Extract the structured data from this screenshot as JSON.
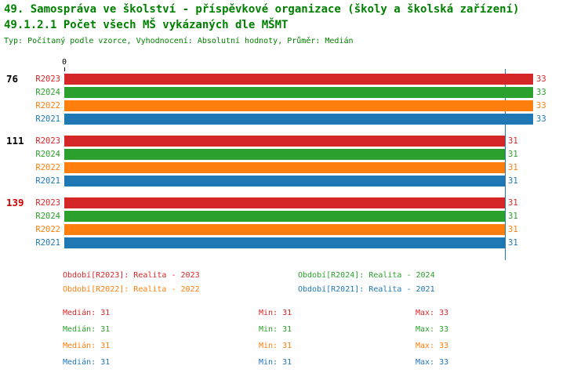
{
  "header": {
    "title": "49. Samospráva ve školství - příspěvkové organizace (školy a školská zařízení)",
    "meta": "Typ: Počítaný podle vzorce, Vyhodnocení: Absolutní hodnoty, Průměr: Medián",
    "title_color": "#008000"
  },
  "colors": {
    "R2023": "#d62728",
    "R2024": "#2ca02c",
    "R2022": "#ff7f0e",
    "R2021": "#1f77b4",
    "group_label": "#000000",
    "group_label_highlight": "#cc0000",
    "median_line": "#1f77b4",
    "axis_text": "#000000"
  },
  "chart_data": {
    "type": "bar",
    "orientation": "horizontal",
    "title": "49.1.2.1 Počet všech MŠ vykázaných dle MŠMT",
    "x_axis": {
      "origin_label": "0",
      "min": 0,
      "max_value_shown": 33,
      "median_line_value": 31,
      "grid": false
    },
    "series_order": [
      "R2023",
      "R2024",
      "R2022",
      "R2021"
    ],
    "groups": [
      {
        "label": "76",
        "highlight": false,
        "values": {
          "R2023": 33,
          "R2024": 33,
          "R2022": 33,
          "R2021": 33
        }
      },
      {
        "label": "111",
        "highlight": false,
        "values": {
          "R2023": 31,
          "R2024": 31,
          "R2022": 31,
          "R2021": 31
        }
      },
      {
        "label": "139",
        "highlight": true,
        "values": {
          "R2023": 31,
          "R2024": 31,
          "R2022": 31,
          "R2021": 31
        }
      }
    ],
    "legend": [
      {
        "series": "R2023",
        "label": "Období[R2023]: Realita - 2023"
      },
      {
        "series": "R2024",
        "label": "Období[R2024]: Realita - 2024"
      },
      {
        "series": "R2022",
        "label": "Období[R2022]: Realita - 2022"
      },
      {
        "series": "R2021",
        "label": "Období[R2021]: Realita - 2021"
      }
    ],
    "stats_labels": {
      "median": "Medián:",
      "min": "Min:",
      "max": "Max:"
    },
    "stats": [
      {
        "series": "R2023",
        "median": 31,
        "min": 31,
        "max": 33
      },
      {
        "series": "R2024",
        "median": 31,
        "min": 31,
        "max": 33
      },
      {
        "series": "R2022",
        "median": 31,
        "min": 31,
        "max": 33
      },
      {
        "series": "R2021",
        "median": 31,
        "min": 31,
        "max": 33
      }
    ]
  }
}
